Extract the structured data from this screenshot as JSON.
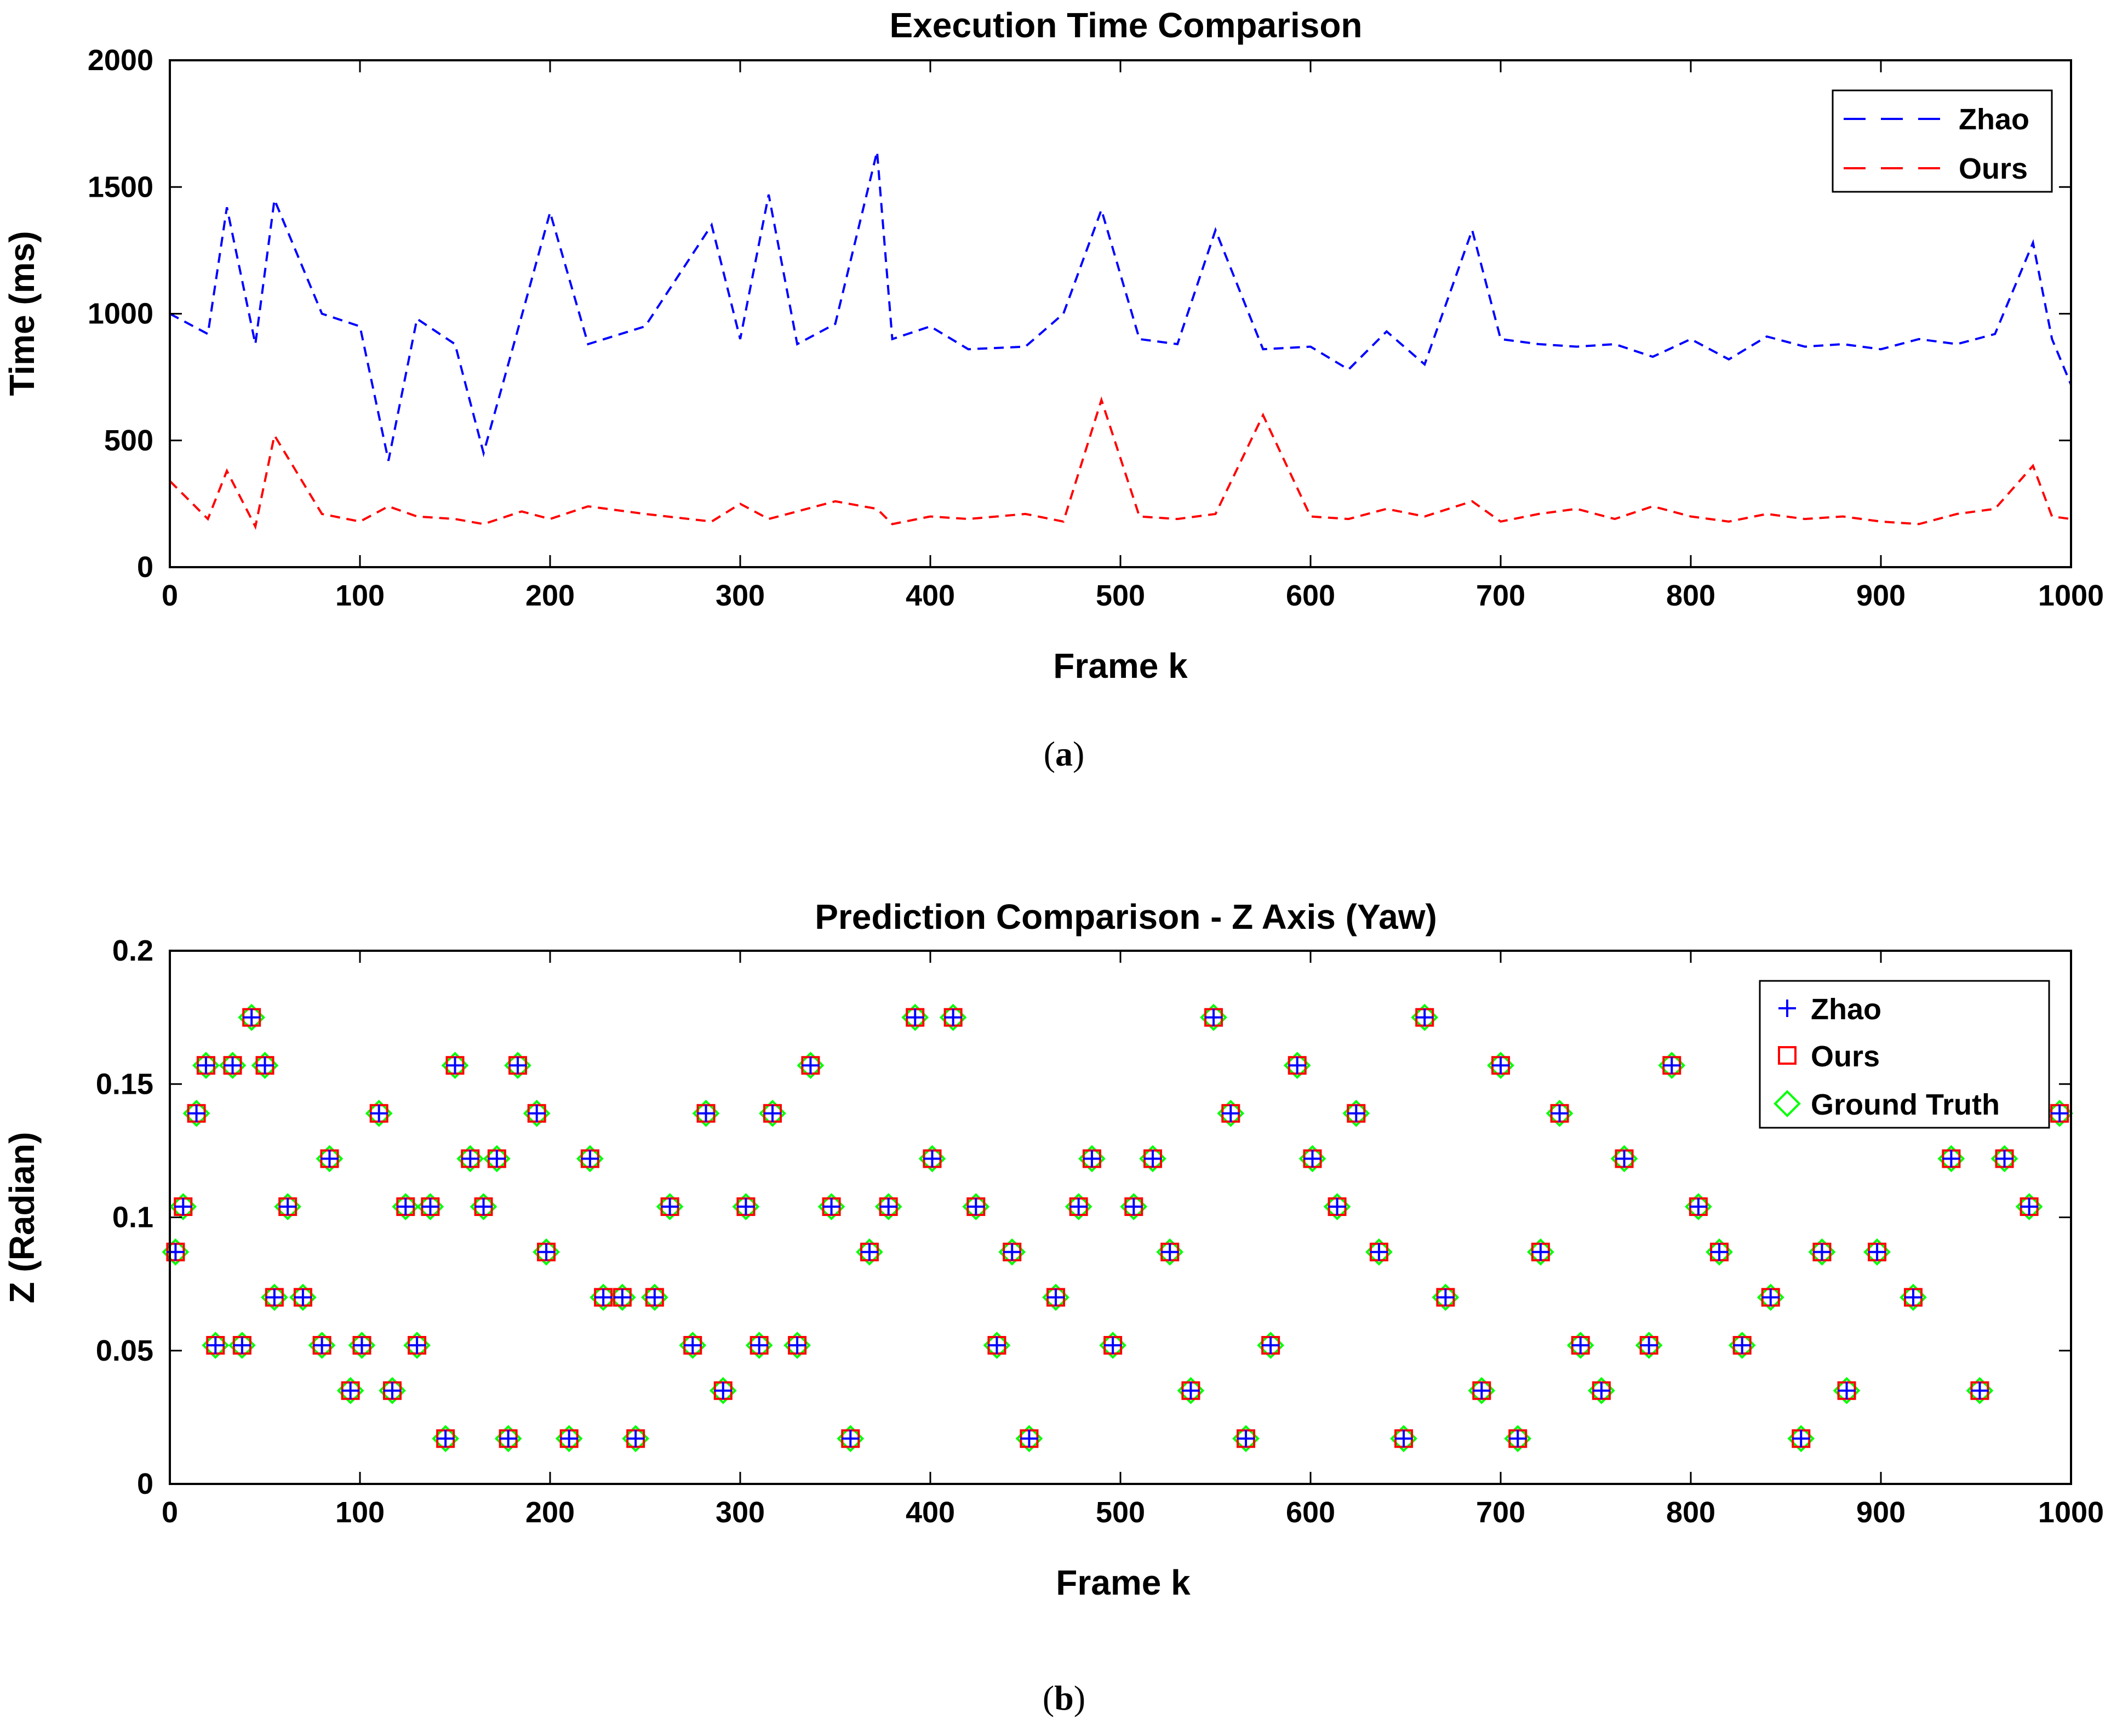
{
  "chart_data": [
    {
      "type": "line",
      "title": "Execution Time Comparison",
      "xlabel": "Frame k",
      "ylabel": "Time (ms)",
      "xlim": [
        0,
        1000
      ],
      "ylim": [
        0,
        2000
      ],
      "xticks": [
        "0",
        "100",
        "200",
        "300",
        "400",
        "500",
        "600",
        "700",
        "800",
        "900",
        "1000"
      ],
      "yticks": [
        "0",
        "500",
        "1000",
        "1500",
        "2000"
      ],
      "caption": "a",
      "legend_position": "top-right",
      "series": [
        {
          "name": "Zhao",
          "color": "#0000ff",
          "style": "dashed",
          "x": [
            0,
            20,
            30,
            45,
            55,
            80,
            100,
            115,
            130,
            150,
            165,
            185,
            200,
            220,
            250,
            285,
            300,
            315,
            330,
            350,
            372,
            380,
            400,
            420,
            450,
            470,
            490,
            510,
            530,
            550,
            575,
            600,
            620,
            640,
            660,
            685,
            700,
            720,
            740,
            760,
            780,
            800,
            820,
            840,
            860,
            880,
            900,
            920,
            940,
            960,
            980,
            990,
            1000
          ],
          "values": [
            1000,
            920,
            1420,
            880,
            1450,
            1000,
            950,
            420,
            980,
            880,
            450,
            990,
            1400,
            880,
            950,
            1350,
            900,
            1470,
            880,
            960,
            1640,
            900,
            950,
            860,
            870,
            1000,
            1410,
            900,
            880,
            1330,
            860,
            870,
            780,
            930,
            800,
            1330,
            900,
            880,
            870,
            880,
            830,
            900,
            820,
            910,
            870,
            880,
            860,
            900,
            880,
            920,
            1280,
            900,
            720
          ]
        },
        {
          "name": "Ours",
          "color": "#ff0000",
          "style": "dashed",
          "x": [
            0,
            20,
            30,
            45,
            55,
            80,
            100,
            115,
            130,
            150,
            165,
            185,
            200,
            220,
            250,
            285,
            300,
            315,
            330,
            350,
            372,
            380,
            400,
            420,
            450,
            470,
            490,
            510,
            530,
            550,
            575,
            600,
            620,
            640,
            660,
            685,
            700,
            720,
            740,
            760,
            780,
            800,
            820,
            840,
            860,
            880,
            900,
            920,
            940,
            960,
            980,
            990,
            1000
          ],
          "values": [
            340,
            190,
            380,
            160,
            520,
            210,
            180,
            240,
            200,
            190,
            170,
            220,
            190,
            240,
            210,
            180,
            250,
            190,
            220,
            260,
            230,
            170,
            200,
            190,
            210,
            180,
            660,
            200,
            190,
            210,
            600,
            200,
            190,
            230,
            200,
            260,
            180,
            210,
            230,
            190,
            240,
            200,
            180,
            210,
            190,
            200,
            180,
            170,
            210,
            230,
            400,
            200,
            190
          ]
        }
      ]
    },
    {
      "type": "scatter",
      "title": "Prediction Comparison - Z Axis (Yaw)",
      "xlabel": "Frame k",
      "ylabel": "Z (Radian)",
      "xlim": [
        0,
        1000
      ],
      "ylim": [
        0,
        0.2
      ],
      "xticks": [
        "0",
        "100",
        "200",
        "300",
        "400",
        "500",
        "600",
        "700",
        "800",
        "900",
        "1000"
      ],
      "yticks": [
        "0",
        "0.05",
        "0.1",
        "0.15",
        "0.2"
      ],
      "caption": "b",
      "legend_position": "top-right",
      "series": [
        {
          "name": "Zhao",
          "color": "#0000ff",
          "marker": "plus",
          "x": [
            3,
            7,
            14,
            19,
            24,
            33,
            38,
            43,
            50,
            55,
            62,
            70,
            80,
            84,
            95,
            101,
            110,
            117,
            124,
            130,
            137,
            145,
            150,
            158,
            165,
            172,
            178,
            183,
            193,
            198,
            210,
            221,
            228,
            238,
            245,
            255,
            263,
            275,
            282,
            291,
            303,
            310,
            317,
            330,
            337,
            348,
            358,
            368,
            378,
            392,
            401,
            412,
            424,
            435,
            443,
            452,
            466,
            478,
            485,
            496,
            507,
            517,
            526,
            537,
            549,
            558,
            566,
            579,
            593,
            601,
            614,
            624,
            636,
            649,
            660,
            671,
            690,
            700,
            709,
            721,
            731,
            742,
            753,
            765,
            778,
            790,
            804,
            815,
            827,
            842,
            858,
            869,
            882,
            898,
            917,
            937,
            952,
            965,
            978,
            994
          ],
          "values": [
            0.087,
            0.104,
            0.139,
            0.157,
            0.052,
            0.157,
            0.052,
            0.175,
            0.157,
            0.07,
            0.104,
            0.07,
            0.052,
            0.122,
            0.035,
            0.052,
            0.139,
            0.035,
            0.104,
            0.052,
            0.104,
            0.017,
            0.157,
            0.122,
            0.104,
            0.122,
            0.017,
            0.157,
            0.139,
            0.087,
            0.017,
            0.122,
            0.07,
            0.07,
            0.017,
            0.07,
            0.104,
            0.052,
            0.139,
            0.035,
            0.104,
            0.052,
            0.139,
            0.052,
            0.157,
            0.104,
            0.017,
            0.087,
            0.104,
            0.175,
            0.122,
            0.175,
            0.104,
            0.052,
            0.087,
            0.017,
            0.07,
            0.104,
            0.122,
            0.052,
            0.104,
            0.122,
            0.087,
            0.035,
            0.175,
            0.139,
            0.017,
            0.052,
            0.157,
            0.122,
            0.104,
            0.139,
            0.087,
            0.017,
            0.175,
            0.07,
            0.035,
            0.157,
            0.017,
            0.087,
            0.139,
            0.052,
            0.035,
            0.122,
            0.052,
            0.157,
            0.104,
            0.087,
            0.052,
            0.07,
            0.017,
            0.087,
            0.035,
            0.087,
            0.07,
            0.122,
            0.035,
            0.122,
            0.104,
            0.139
          ]
        },
        {
          "name": "Ours",
          "color": "#ff0000",
          "marker": "square",
          "x": [
            3,
            7,
            14,
            19,
            24,
            33,
            38,
            43,
            50,
            55,
            62,
            70,
            80,
            84,
            95,
            101,
            110,
            117,
            124,
            130,
            137,
            145,
            150,
            158,
            165,
            172,
            178,
            183,
            193,
            198,
            210,
            221,
            228,
            238,
            245,
            255,
            263,
            275,
            282,
            291,
            303,
            310,
            317,
            330,
            337,
            348,
            358,
            368,
            378,
            392,
            401,
            412,
            424,
            435,
            443,
            452,
            466,
            478,
            485,
            496,
            507,
            517,
            526,
            537,
            549,
            558,
            566,
            579,
            593,
            601,
            614,
            624,
            636,
            649,
            660,
            671,
            690,
            700,
            709,
            721,
            731,
            742,
            753,
            765,
            778,
            790,
            804,
            815,
            827,
            842,
            858,
            869,
            882,
            898,
            917,
            937,
            952,
            965,
            978,
            994
          ],
          "values": [
            0.087,
            0.104,
            0.139,
            0.157,
            0.052,
            0.157,
            0.052,
            0.175,
            0.157,
            0.07,
            0.104,
            0.07,
            0.052,
            0.122,
            0.035,
            0.052,
            0.139,
            0.035,
            0.104,
            0.052,
            0.104,
            0.017,
            0.157,
            0.122,
            0.104,
            0.122,
            0.017,
            0.157,
            0.139,
            0.087,
            0.017,
            0.122,
            0.07,
            0.07,
            0.017,
            0.07,
            0.104,
            0.052,
            0.139,
            0.035,
            0.104,
            0.052,
            0.139,
            0.052,
            0.157,
            0.104,
            0.017,
            0.087,
            0.104,
            0.175,
            0.122,
            0.175,
            0.104,
            0.052,
            0.087,
            0.017,
            0.07,
            0.104,
            0.122,
            0.052,
            0.104,
            0.122,
            0.087,
            0.035,
            0.175,
            0.139,
            0.017,
            0.052,
            0.157,
            0.122,
            0.104,
            0.139,
            0.087,
            0.017,
            0.175,
            0.07,
            0.035,
            0.157,
            0.017,
            0.087,
            0.139,
            0.052,
            0.035,
            0.122,
            0.052,
            0.157,
            0.104,
            0.087,
            0.052,
            0.07,
            0.017,
            0.087,
            0.035,
            0.087,
            0.07,
            0.122,
            0.035,
            0.122,
            0.104,
            0.139
          ]
        },
        {
          "name": "Ground Truth",
          "color": "#00ff00",
          "marker": "diamond",
          "x": [
            3,
            7,
            14,
            19,
            24,
            33,
            38,
            43,
            50,
            55,
            62,
            70,
            80,
            84,
            95,
            101,
            110,
            117,
            124,
            130,
            137,
            145,
            150,
            158,
            165,
            172,
            178,
            183,
            193,
            198,
            210,
            221,
            228,
            238,
            245,
            255,
            263,
            275,
            282,
            291,
            303,
            310,
            317,
            330,
            337,
            348,
            358,
            368,
            378,
            392,
            401,
            412,
            424,
            435,
            443,
            452,
            466,
            478,
            485,
            496,
            507,
            517,
            526,
            537,
            549,
            558,
            566,
            579,
            593,
            601,
            614,
            624,
            636,
            649,
            660,
            671,
            690,
            700,
            709,
            721,
            731,
            742,
            753,
            765,
            778,
            790,
            804,
            815,
            827,
            842,
            858,
            869,
            882,
            898,
            917,
            937,
            952,
            965,
            978,
            994
          ],
          "values": [
            0.087,
            0.104,
            0.139,
            0.157,
            0.052,
            0.157,
            0.052,
            0.175,
            0.157,
            0.07,
            0.104,
            0.07,
            0.052,
            0.122,
            0.035,
            0.052,
            0.139,
            0.035,
            0.104,
            0.052,
            0.104,
            0.017,
            0.157,
            0.122,
            0.104,
            0.122,
            0.017,
            0.157,
            0.139,
            0.087,
            0.017,
            0.122,
            0.07,
            0.07,
            0.017,
            0.07,
            0.104,
            0.052,
            0.139,
            0.035,
            0.104,
            0.052,
            0.139,
            0.052,
            0.157,
            0.104,
            0.017,
            0.087,
            0.104,
            0.175,
            0.122,
            0.175,
            0.104,
            0.052,
            0.087,
            0.017,
            0.07,
            0.104,
            0.122,
            0.052,
            0.104,
            0.122,
            0.087,
            0.035,
            0.175,
            0.139,
            0.017,
            0.052,
            0.157,
            0.122,
            0.104,
            0.139,
            0.087,
            0.017,
            0.175,
            0.07,
            0.035,
            0.157,
            0.017,
            0.087,
            0.139,
            0.052,
            0.035,
            0.122,
            0.052,
            0.157,
            0.104,
            0.087,
            0.052,
            0.07,
            0.017,
            0.087,
            0.035,
            0.087,
            0.07,
            0.122,
            0.035,
            0.122,
            0.104,
            0.139
          ]
        }
      ]
    }
  ]
}
